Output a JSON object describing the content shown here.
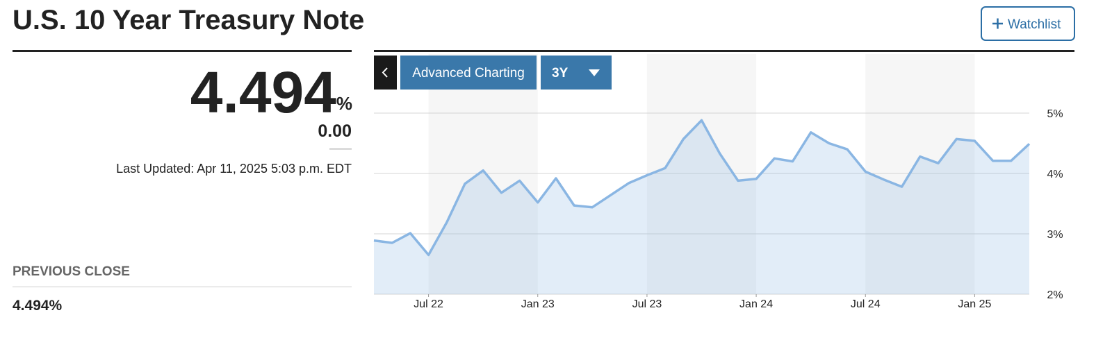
{
  "header": {
    "title": "U.S. 10 Year Treasury Note",
    "watchlist": "Watchlist"
  },
  "quote": {
    "price": "4.494",
    "unit": "%",
    "change": "0.00",
    "last_updated": "Last Updated: Apr 11, 2025 5:03 p.m. EDT",
    "previous_close_label": "PREVIOUS CLOSE",
    "previous_close": "4.494%"
  },
  "toolbar": {
    "advanced": "Advanced Charting",
    "range": "3Y"
  },
  "chart_data": {
    "type": "line",
    "color": "#8ab6e3",
    "x": [
      "2022-04",
      "2022-05",
      "2022-06",
      "2022-07",
      "2022-08",
      "2022-09",
      "2022-10",
      "2022-11",
      "2022-12",
      "2023-01",
      "2023-02",
      "2023-03",
      "2023-04",
      "2023-05",
      "2023-06",
      "2023-07",
      "2023-08",
      "2023-09",
      "2023-10",
      "2023-11",
      "2023-12",
      "2024-01",
      "2024-02",
      "2024-03",
      "2024-04",
      "2024-05",
      "2024-06",
      "2024-07",
      "2024-08",
      "2024-09",
      "2024-10",
      "2024-11",
      "2024-12",
      "2025-01",
      "2025-02",
      "2025-03",
      "2025-04"
    ],
    "values": [
      2.89,
      2.85,
      3.01,
      2.65,
      3.19,
      3.83,
      4.05,
      3.68,
      3.88,
      3.52,
      3.92,
      3.47,
      3.44,
      3.64,
      3.84,
      3.97,
      4.09,
      4.57,
      4.88,
      4.33,
      3.88,
      3.91,
      4.25,
      4.2,
      4.68,
      4.5,
      4.4,
      4.03,
      3.9,
      3.78,
      4.28,
      4.17,
      4.57,
      4.54,
      4.21,
      4.21,
      4.49
    ],
    "xlim": [
      "2022-04",
      "2025-04"
    ],
    "xticks": [
      {
        "value": "2022-07",
        "label": "Jul 22"
      },
      {
        "value": "2023-01",
        "label": "Jan 23"
      },
      {
        "value": "2023-07",
        "label": "Jul 23"
      },
      {
        "value": "2024-01",
        "label": "Jan 24"
      },
      {
        "value": "2024-07",
        "label": "Jul 24"
      },
      {
        "value": "2025-01",
        "label": "Jan 25"
      }
    ],
    "ylim": [
      2,
      5
    ],
    "yticks": [
      {
        "value": 2,
        "label": "2%"
      },
      {
        "value": 3,
        "label": "3%"
      },
      {
        "value": 4,
        "label": "4%"
      },
      {
        "value": 5,
        "label": "5%"
      }
    ],
    "grid": true
  }
}
